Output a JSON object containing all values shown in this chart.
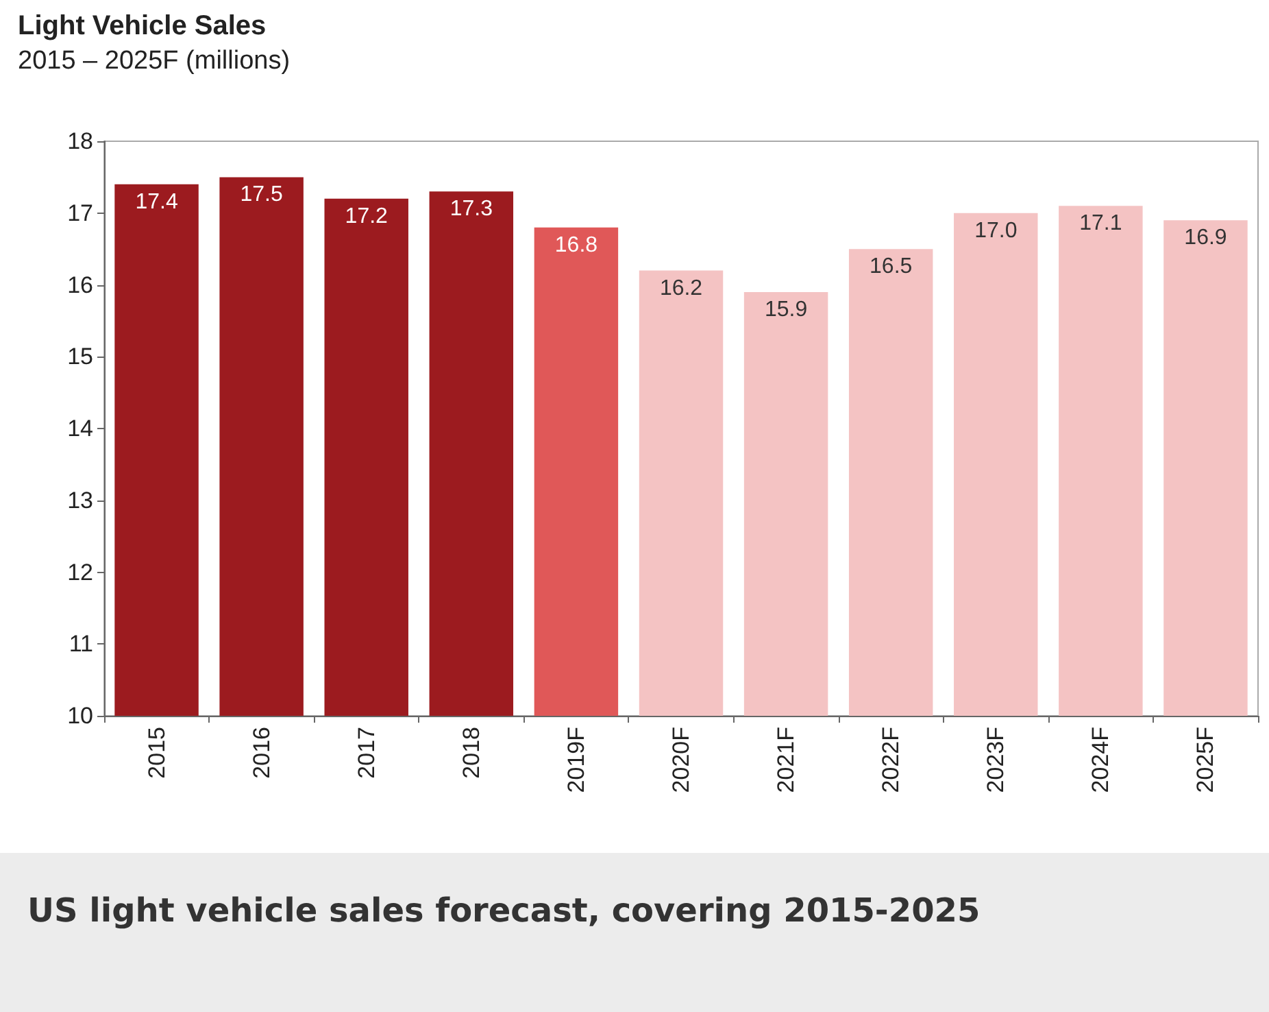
{
  "chart_data": {
    "type": "bar",
    "title": "Light Vehicle Sales",
    "subtitle": "2015 – 2025F (millions)",
    "categories": [
      "2015",
      "2016",
      "2017",
      "2018",
      "2019F",
      "2020F",
      "2021F",
      "2022F",
      "2023F",
      "2024F",
      "2025F"
    ],
    "values": [
      17.4,
      17.5,
      17.2,
      17.3,
      16.8,
      16.2,
      15.9,
      16.5,
      17.0,
      17.1,
      16.9
    ],
    "value_labels": [
      "17.4",
      "17.5",
      "17.2",
      "17.3",
      "16.8",
      "16.2",
      "15.9",
      "16.5",
      "17.0",
      "17.1",
      "16.9"
    ],
    "colors": [
      "#9c1b1f",
      "#9c1b1f",
      "#9c1b1f",
      "#9c1b1f",
      "#e05858",
      "#f4c3c3",
      "#f4c3c3",
      "#f4c3c3",
      "#f4c3c3",
      "#f4c3c3",
      "#f4c3c3"
    ],
    "ylim": [
      10,
      18
    ],
    "yticks": [
      10,
      11,
      12,
      13,
      14,
      15,
      16,
      17,
      18
    ],
    "grid": false,
    "annotations": [
      "US light vehicle sales forecast, covering 2015-2025"
    ]
  }
}
